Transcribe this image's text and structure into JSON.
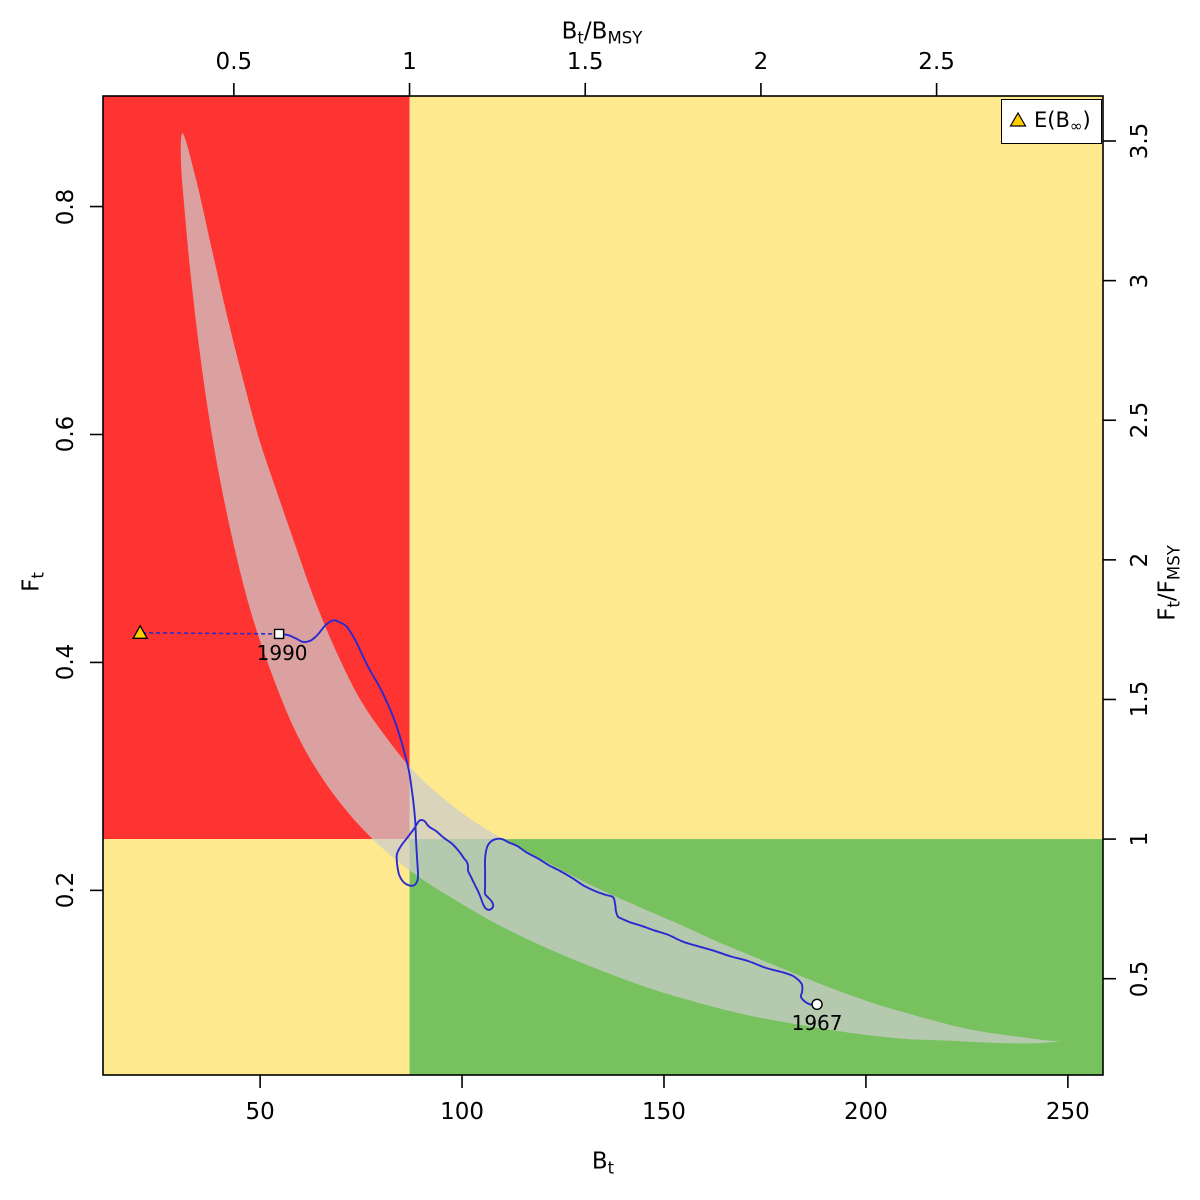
{
  "chart_data": {
    "type": "scatter",
    "subtype": "kobe-phase-plot",
    "axes": {
      "bottom": {
        "title": "Bt",
        "range": [
          11.1,
          258.7
        ],
        "ticks": [
          {
            "v": 50,
            "label": "50"
          },
          {
            "v": 100,
            "label": "100"
          },
          {
            "v": 150,
            "label": "150"
          },
          {
            "v": 200,
            "label": "200"
          },
          {
            "v": 250,
            "label": "250"
          }
        ]
      },
      "top": {
        "title": "Bt/BMSY",
        "ticks": [
          {
            "v": 0.5,
            "label": "0.5"
          },
          {
            "v": 1,
            "label": "1"
          },
          {
            "v": 1.5,
            "label": "1.5"
          },
          {
            "v": 2,
            "label": "2"
          },
          {
            "v": 2.5,
            "label": "2.5"
          }
        ]
      },
      "left": {
        "title": "Ft",
        "range": [
          0.038,
          0.897
        ],
        "ticks": [
          {
            "v": 0.2,
            "label": "0.2"
          },
          {
            "v": 0.4,
            "label": "0.4"
          },
          {
            "v": 0.6,
            "label": "0.6"
          },
          {
            "v": 0.8,
            "label": "0.8"
          }
        ]
      },
      "right": {
        "title": "Ft/FMSY",
        "ticks": [
          {
            "v": 0.5,
            "label": "0.5"
          },
          {
            "v": 1,
            "label": "1"
          },
          {
            "v": 1.5,
            "label": "1.5"
          },
          {
            "v": 2,
            "label": "2"
          },
          {
            "v": 2.5,
            "label": "2.5"
          },
          {
            "v": 3,
            "label": "3"
          },
          {
            "v": 3.5,
            "label": "3.5"
          }
        ]
      }
    },
    "reference": {
      "B_MSY": 87,
      "F_MSY": 0.245
    },
    "colors": {
      "quadrant_overfished": "#fd3431",
      "quadrant_warning": "#fee98e",
      "quadrant_healthy": "#77c25e",
      "confidence_fill": "#cccccc",
      "confidence_opacity": 0.72,
      "trajectory": "#2a2ad0",
      "triangle_fill": "#ffce00",
      "marker_fill": "#ffffff",
      "marker_stroke": "#000000"
    },
    "trajectory": [
      [
        54.7,
        0.425
      ],
      [
        56.9,
        0.424
      ],
      [
        58.9,
        0.421
      ],
      [
        60.6,
        0.418
      ],
      [
        62.4,
        0.419
      ],
      [
        63.9,
        0.423
      ],
      [
        65.1,
        0.428
      ],
      [
        66.3,
        0.433
      ],
      [
        68.1,
        0.437
      ],
      [
        69.8,
        0.435
      ],
      [
        71.3,
        0.432
      ],
      [
        72.5,
        0.426
      ],
      [
        73.8,
        0.418
      ],
      [
        75.0,
        0.409
      ],
      [
        76.2,
        0.4
      ],
      [
        77.7,
        0.39
      ],
      [
        79.2,
        0.381
      ],
      [
        80.9,
        0.369
      ],
      [
        82.4,
        0.357
      ],
      [
        83.9,
        0.343
      ],
      [
        85.1,
        0.329
      ],
      [
        86.1,
        0.316
      ],
      [
        86.9,
        0.304
      ],
      [
        87.4,
        0.292
      ],
      [
        87.9,
        0.279
      ],
      [
        88.4,
        0.261
      ],
      [
        88.6,
        0.244
      ],
      [
        88.9,
        0.226
      ],
      [
        89.1,
        0.212
      ],
      [
        88.6,
        0.206
      ],
      [
        87.4,
        0.204
      ],
      [
        85.6,
        0.207
      ],
      [
        84.4,
        0.214
      ],
      [
        83.9,
        0.224
      ],
      [
        83.9,
        0.232
      ],
      [
        84.9,
        0.239
      ],
      [
        86.4,
        0.246
      ],
      [
        88.1,
        0.254
      ],
      [
        89.4,
        0.261
      ],
      [
        90.6,
        0.261
      ],
      [
        91.8,
        0.256
      ],
      [
        93.6,
        0.252
      ],
      [
        95.5,
        0.246
      ],
      [
        97.5,
        0.241
      ],
      [
        99.3,
        0.234
      ],
      [
        100.5,
        0.228
      ],
      [
        101.2,
        0.225
      ],
      [
        101.5,
        0.221
      ],
      [
        101.5,
        0.217
      ],
      [
        102.2,
        0.212
      ],
      [
        103.0,
        0.206
      ],
      [
        104.0,
        0.199
      ],
      [
        104.7,
        0.193
      ],
      [
        105.2,
        0.188
      ],
      [
        105.9,
        0.184
      ],
      [
        106.9,
        0.183
      ],
      [
        107.7,
        0.186
      ],
      [
        107.4,
        0.19
      ],
      [
        106.4,
        0.194
      ],
      [
        105.7,
        0.197
      ],
      [
        105.7,
        0.205
      ],
      [
        105.7,
        0.216
      ],
      [
        105.7,
        0.228
      ],
      [
        106.2,
        0.238
      ],
      [
        107.2,
        0.243
      ],
      [
        108.4,
        0.245
      ],
      [
        109.9,
        0.245
      ],
      [
        111.6,
        0.242
      ],
      [
        113.6,
        0.239
      ],
      [
        116.1,
        0.233
      ],
      [
        118.8,
        0.228
      ],
      [
        121.5,
        0.222
      ],
      [
        124.3,
        0.217
      ],
      [
        127.2,
        0.211
      ],
      [
        130.2,
        0.204
      ],
      [
        133.2,
        0.199
      ],
      [
        135.6,
        0.196
      ],
      [
        137.4,
        0.194
      ],
      [
        137.9,
        0.188
      ],
      [
        138.1,
        0.182
      ],
      [
        138.6,
        0.177
      ],
      [
        139.6,
        0.175
      ],
      [
        141.6,
        0.172
      ],
      [
        144.3,
        0.169
      ],
      [
        147.5,
        0.165
      ],
      [
        151.0,
        0.161
      ],
      [
        154.7,
        0.155
      ],
      [
        158.4,
        0.151
      ],
      [
        162.4,
        0.147
      ],
      [
        166.6,
        0.142
      ],
      [
        170.8,
        0.138
      ],
      [
        175.2,
        0.132
      ],
      [
        179.5,
        0.128
      ],
      [
        181.9,
        0.125
      ],
      [
        183.4,
        0.121
      ],
      [
        184.2,
        0.117
      ],
      [
        184.2,
        0.111
      ],
      [
        183.9,
        0.107
      ],
      [
        184.7,
        0.103
      ],
      [
        186.1,
        0.1
      ],
      [
        187.9,
        0.1
      ]
    ],
    "confidence_region": [
      [
        30.9,
        0.864
      ],
      [
        34.2,
        0.823
      ],
      [
        38.4,
        0.757
      ],
      [
        42.1,
        0.7
      ],
      [
        45.5,
        0.652
      ],
      [
        49.5,
        0.599
      ],
      [
        54.0,
        0.551
      ],
      [
        58.7,
        0.503
      ],
      [
        63.6,
        0.454
      ],
      [
        69.3,
        0.406
      ],
      [
        75.2,
        0.365
      ],
      [
        81.7,
        0.332
      ],
      [
        87.9,
        0.305
      ],
      [
        94.6,
        0.283
      ],
      [
        101.5,
        0.264
      ],
      [
        108.7,
        0.248
      ],
      [
        115.1,
        0.236
      ],
      [
        123.0,
        0.221
      ],
      [
        131.7,
        0.205
      ],
      [
        141.6,
        0.189
      ],
      [
        152.7,
        0.172
      ],
      [
        163.9,
        0.154
      ],
      [
        176.2,
        0.136
      ],
      [
        188.6,
        0.118
      ],
      [
        201.0,
        0.102
      ],
      [
        213.4,
        0.089
      ],
      [
        225.7,
        0.078
      ],
      [
        236.9,
        0.072
      ],
      [
        245.5,
        0.068
      ],
      [
        248.8,
        0.068
      ],
      [
        243.1,
        0.066
      ],
      [
        233.2,
        0.066
      ],
      [
        220.8,
        0.068
      ],
      [
        208.4,
        0.07
      ],
      [
        196.0,
        0.075
      ],
      [
        183.7,
        0.082
      ],
      [
        171.3,
        0.09
      ],
      [
        158.9,
        0.101
      ],
      [
        146.5,
        0.114
      ],
      [
        134.2,
        0.13
      ],
      [
        121.8,
        0.148
      ],
      [
        109.4,
        0.169
      ],
      [
        99.5,
        0.189
      ],
      [
        89.6,
        0.211
      ],
      [
        80.9,
        0.235
      ],
      [
        72.3,
        0.266
      ],
      [
        64.9,
        0.301
      ],
      [
        58.7,
        0.34
      ],
      [
        53.0,
        0.389
      ],
      [
        48.0,
        0.441
      ],
      [
        43.8,
        0.498
      ],
      [
        40.1,
        0.56
      ],
      [
        37.1,
        0.621
      ],
      [
        34.7,
        0.682
      ],
      [
        32.7,
        0.744
      ],
      [
        31.2,
        0.801
      ],
      [
        30.4,
        0.84
      ]
    ],
    "markers": [
      {
        "id": "trajectory-start",
        "year": "1967",
        "shape": "circle",
        "B": 187.9,
        "F": 0.1
      },
      {
        "id": "trajectory-end",
        "year": "1990",
        "shape": "square",
        "B": 54.7,
        "F": 0.425
      },
      {
        "id": "expected-unfished-biomass",
        "shape": "triangle",
        "B": 20.3,
        "F": 0.426
      }
    ],
    "projection_line": {
      "from": [
        54.7,
        0.425
      ],
      "to": [
        20.3,
        0.426
      ],
      "style": "dashed"
    }
  },
  "axis_titles": {
    "bottom": {
      "base1": "B",
      "sub1": "t"
    },
    "top": {
      "base1": "B",
      "sub1": "t",
      "sep": "/",
      "base2": "B",
      "sub2": "MSY"
    },
    "left": {
      "base1": "F",
      "sub1": "t"
    },
    "right": {
      "base1": "F",
      "sub1": "t",
      "sep": "/",
      "base2": "F",
      "sub2": "MSY"
    }
  },
  "legend": {
    "prefix": "E(B",
    "sub": "∞",
    "suffix": ")"
  }
}
